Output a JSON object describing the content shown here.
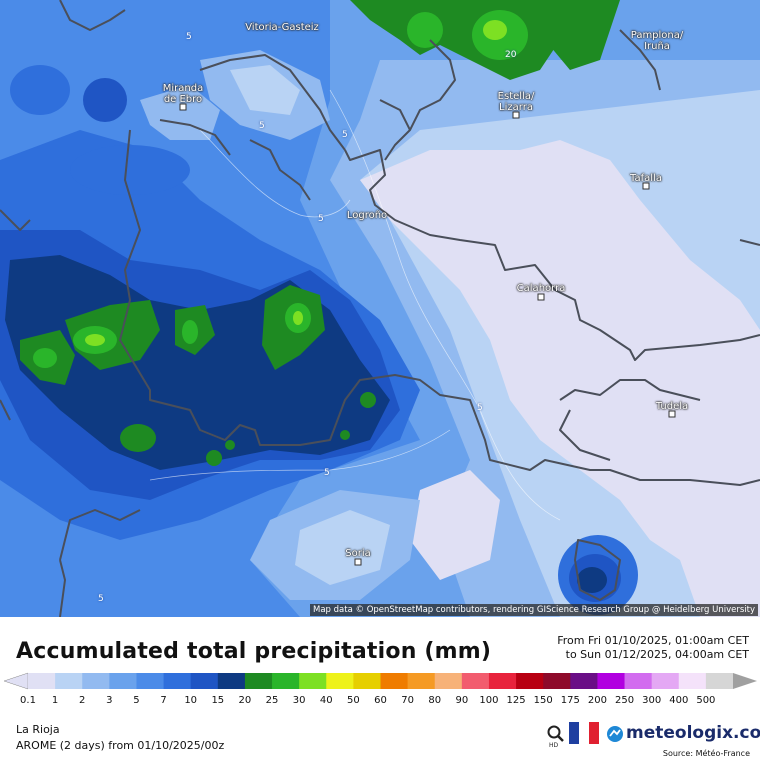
{
  "map": {
    "cities": [
      {
        "name": "Vitoria-Gasteiz",
        "lines": [
          "Vitoria-Gasteiz"
        ]
      },
      {
        "name": "Pamplona/Iruña",
        "lines": [
          "Pamplona/",
          "Iruña"
        ]
      },
      {
        "name": "Miranda de Ebro",
        "lines": [
          "Miranda",
          "de Ebro"
        ]
      },
      {
        "name": "Estella/Lizarra",
        "lines": [
          "Estella/",
          "Lizarra"
        ]
      },
      {
        "name": "Tafalla",
        "lines": [
          "Tafalla"
        ]
      },
      {
        "name": "Logroño",
        "lines": [
          "Logroño"
        ]
      },
      {
        "name": "Calahorra",
        "lines": [
          "Calahorra"
        ]
      },
      {
        "name": "Tudela",
        "lines": [
          "Tudela"
        ]
      },
      {
        "name": "Soria",
        "lines": [
          "Soria"
        ]
      }
    ],
    "contour_labels": [
      "5",
      "5",
      "5",
      "5",
      "5",
      "5",
      "5",
      "20"
    ],
    "attribution": "Map data © OpenStreetMap contributors, rendering GIScience Research Group @ Heidelberg University"
  },
  "footer": {
    "title": "Accumulated total precipitation (mm)",
    "period_from": "From Fri 01/10/2025, 01:00am CET",
    "period_to": "to Sun 01/12/2025, 04:00am CET",
    "region": "La Rioja",
    "model": "AROME (2 days) from 01/10/2025/00z",
    "brand": "meteologix.com",
    "source": "Source: Météo-France",
    "hd_label": "HD"
  },
  "legend": {
    "unit": "mm",
    "stops": [
      {
        "label": "0.1",
        "color": "#e0e0f4"
      },
      {
        "label": "1",
        "color": "#b9d3f4"
      },
      {
        "label": "2",
        "color": "#92baf0"
      },
      {
        "label": "3",
        "color": "#6aa2ec"
      },
      {
        "label": "5",
        "color": "#4b8be8"
      },
      {
        "label": "7",
        "color": "#2f6fdc"
      },
      {
        "label": "10",
        "color": "#1f55c4"
      },
      {
        "label": "15",
        "color": "#0e3a82"
      },
      {
        "label": "20",
        "color": "#1e8a22"
      },
      {
        "label": "25",
        "color": "#2ab52a"
      },
      {
        "label": "30",
        "color": "#7de023"
      },
      {
        "label": "40",
        "color": "#eef21a"
      },
      {
        "label": "50",
        "color": "#e6cf00"
      },
      {
        "label": "60",
        "color": "#ef7c00"
      },
      {
        "label": "70",
        "color": "#f59a24"
      },
      {
        "label": "80",
        "color": "#f7b278"
      },
      {
        "label": "90",
        "color": "#f25c6e"
      },
      {
        "label": "100",
        "color": "#e8233c"
      },
      {
        "label": "125",
        "color": "#b80012"
      },
      {
        "label": "150",
        "color": "#8e0a2a"
      },
      {
        "label": "175",
        "color": "#6a0e86"
      },
      {
        "label": "200",
        "color": "#b100e0"
      },
      {
        "label": "250",
        "color": "#d26cef"
      },
      {
        "label": "300",
        "color": "#e4a8f4"
      },
      {
        "label": "400",
        "color": "#f4e2fa"
      },
      {
        "label": "500",
        "color": "#d6d6d6"
      }
    ],
    "arrow_color": "#a0a0a0"
  }
}
